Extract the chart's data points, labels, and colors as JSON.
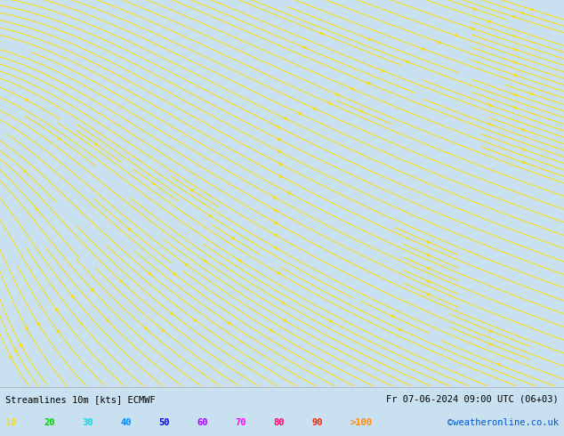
{
  "title_left": "Streamlines 10m [kts] ECMWF",
  "title_right": "Fr 07-06-2024 09:00 UTC (06+03)",
  "copyright": "©weatheronline.co.uk",
  "legend_values": [
    "10",
    "20",
    "30",
    "40",
    "50",
    "60",
    "70",
    "80",
    "90",
    ">100"
  ],
  "legend_colors": [
    "#ffdd00",
    "#00cc00",
    "#00dddd",
    "#0088ff",
    "#0000ee",
    "#aa00ff",
    "#ff00ff",
    "#ff0066",
    "#ff2200",
    "#ff8800"
  ],
  "fig_width": 6.34,
  "fig_height": 4.9,
  "dpi": 100,
  "ocean_color": "#d8d8d8",
  "land_color": "#c8eeaa",
  "water_body_color": "#d0d0d0",
  "coastline_color": "#333333",
  "bottom_bg": "#c8e0f0",
  "text_color": "#000000",
  "copyright_color": "#0055cc",
  "streamline_yellow": "#ffdd00",
  "streamline_green": "#44cc00",
  "lon_min": 0.0,
  "lon_max": 40.0,
  "lat_min": 54.0,
  "lat_max": 72.0
}
